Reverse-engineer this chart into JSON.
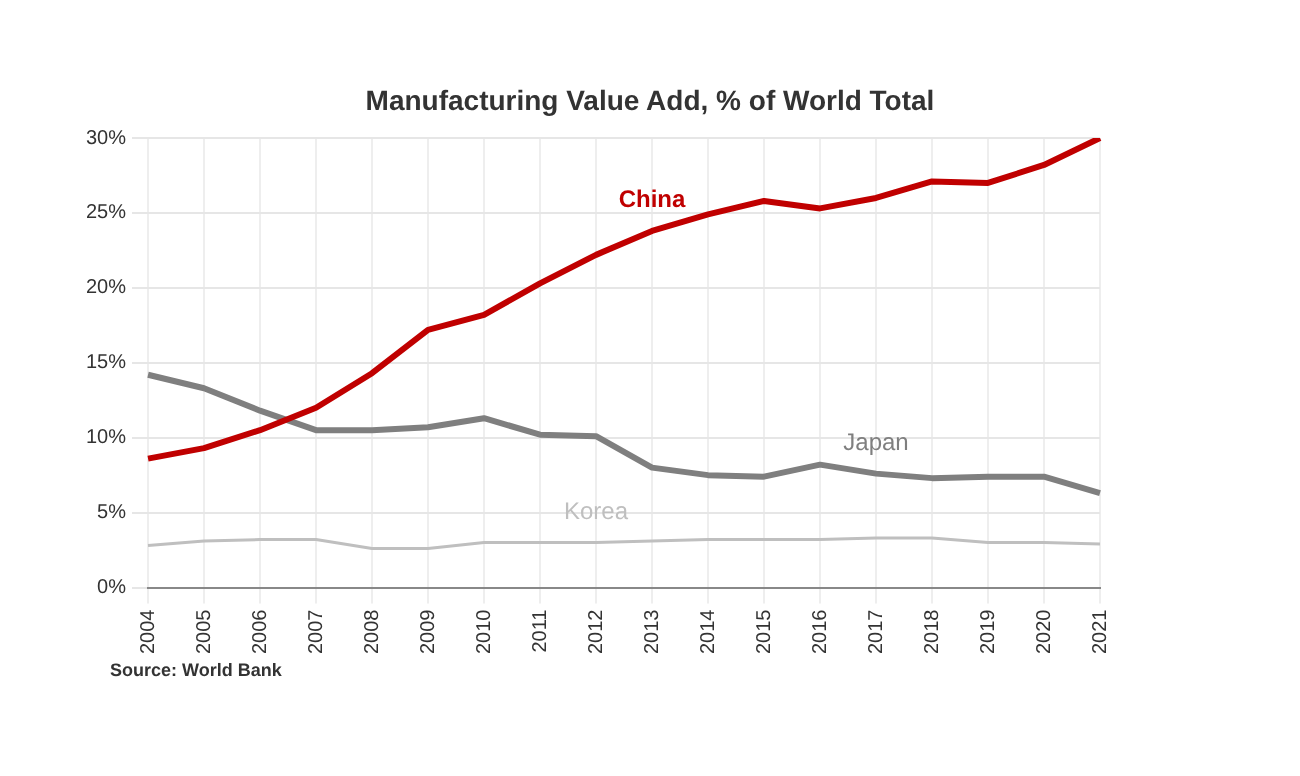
{
  "chart_data": {
    "type": "line",
    "title": "Manufacturing Value Add, % of World Total",
    "categories": [
      "2004",
      "2005",
      "2006",
      "2007",
      "2008",
      "2009",
      "2010",
      "2011",
      "2012",
      "2013",
      "2014",
      "2015",
      "2016",
      "2017",
      "2018",
      "2019",
      "2020",
      "2021"
    ],
    "series": [
      {
        "name": "China",
        "color": "#c00000",
        "values": [
          8.6,
          9.3,
          10.5,
          12.0,
          14.3,
          17.2,
          18.2,
          20.3,
          22.2,
          23.8,
          24.9,
          25.8,
          25.3,
          26.0,
          27.1,
          27.0,
          28.2,
          30.0
        ]
      },
      {
        "name": "Japan",
        "color": "#7f7f7f",
        "values": [
          14.2,
          13.3,
          11.8,
          10.5,
          10.5,
          10.7,
          11.3,
          10.2,
          10.1,
          8.0,
          7.5,
          7.4,
          8.2,
          7.6,
          7.3,
          7.4,
          7.4,
          6.3
        ]
      },
      {
        "name": "Korea",
        "color": "#bfbfbf",
        "values": [
          2.8,
          3.1,
          3.2,
          3.2,
          2.6,
          2.6,
          3.0,
          3.0,
          3.0,
          3.1,
          3.2,
          3.2,
          3.2,
          3.3,
          3.3,
          3.0,
          3.0,
          2.9
        ]
      }
    ],
    "ylim": [
      0,
      30
    ],
    "yticks": [
      {
        "value": 0,
        "label": "0%"
      },
      {
        "value": 5,
        "label": "5%"
      },
      {
        "value": 10,
        "label": "10%"
      },
      {
        "value": 15,
        "label": "15%"
      },
      {
        "value": 20,
        "label": "20%"
      },
      {
        "value": 25,
        "label": "25%"
      },
      {
        "value": 30,
        "label": "30%"
      }
    ],
    "grid": true,
    "legend": false,
    "marker": "none",
    "line_style": "solid",
    "annotations": [
      "Source: World Bank"
    ]
  }
}
